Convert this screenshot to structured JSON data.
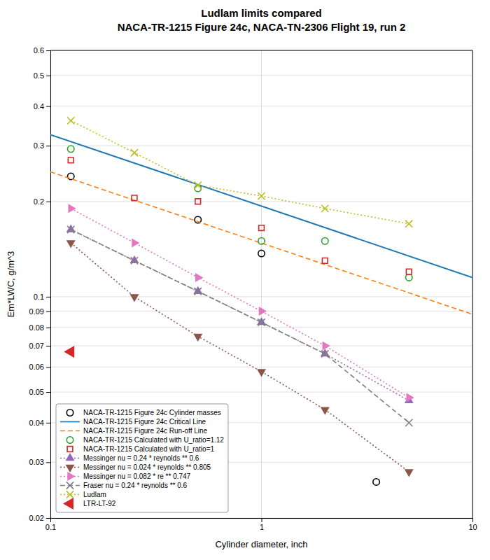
{
  "chart_data": {
    "type": "line",
    "title": "Ludlam limits compared\nNACA-TR-1215 Figure 24c, NACA-TN-2306 Flight 19, run 2",
    "xlabel": "Cylinder diameter, inch",
    "ylabel": "Em*LWC, g/m^3",
    "log": true,
    "xlim": [
      0.1,
      10
    ],
    "ylim": [
      0.02,
      0.6
    ],
    "xticks": [
      0.1,
      1,
      10
    ],
    "yticks": [
      0.02,
      0.03,
      0.04,
      0.05,
      0.06,
      0.07,
      0.08,
      0.09,
      0.1,
      0.2,
      0.3,
      0.4,
      0.5,
      0.6
    ],
    "grid": true,
    "legend": "lower left",
    "series": [
      {
        "name": "NACA-TR-1215 Figure 24c Cylinder masses",
        "type": "scatter",
        "color": "black",
        "marker": "circle-open",
        "x": [
          0.125,
          0.5,
          1.0,
          3.5
        ],
        "values": [
          0.24,
          0.175,
          0.137,
          0.026
        ]
      },
      {
        "name": "NACA-TR-1215 Figure 24c Critical Line",
        "type": "line",
        "color": "#1f77b4",
        "line_style": "solid",
        "x": [
          0.1,
          10
        ],
        "values": [
          0.325,
          0.115
        ]
      },
      {
        "name": "NACA-TR-1215 Figure 24c Run-off Line",
        "type": "line",
        "color": "#ff7f0e",
        "line_style": "dashed",
        "x": [
          0.1,
          10
        ],
        "values": [
          0.248,
          0.088
        ]
      },
      {
        "name": "NACA-TR-1215 Calculated with U_ratio=1.12",
        "type": "scatter",
        "color": "#2ca02c",
        "marker": "circle-open",
        "x": [
          0.125,
          0.5,
          1.0,
          2.0,
          5.0
        ],
        "values": [
          0.293,
          0.22,
          0.15,
          0.15,
          0.115
        ]
      },
      {
        "name": "NACA-TR-1215 Calculated with U_ratio=1",
        "type": "scatter",
        "color": "#d62728",
        "marker": "square-open",
        "x": [
          0.125,
          0.25,
          0.5,
          1.0,
          2.0,
          5.0
        ],
        "values": [
          0.27,
          0.205,
          0.2,
          0.165,
          0.13,
          0.12
        ]
      },
      {
        "name": "Messinger nu = 0.24 * reynolds ** 0.6",
        "type": "line",
        "color": "#9467bd",
        "line_style": "dotted",
        "marker": "triangle-up",
        "x": [
          0.125,
          0.25,
          0.5,
          1.0,
          2.0,
          5.0
        ],
        "values": [
          0.163,
          0.13,
          0.104,
          0.083,
          0.066,
          0.047
        ]
      },
      {
        "name": "Messinger nu = 0.024 * reynolds ** 0.805",
        "type": "line",
        "color": "#8c564b",
        "line_style": "dotted",
        "marker": "triangle-down",
        "x": [
          0.125,
          0.25,
          0.5,
          1.0,
          2.0,
          5.0
        ],
        "values": [
          0.148,
          0.1,
          0.075,
          0.058,
          0.044,
          0.028
        ]
      },
      {
        "name": "Messinger nu = 0.082 * re ** 0.747",
        "type": "line",
        "color": "#e377c2",
        "line_style": "dotted",
        "marker": "triangle-right",
        "x": [
          0.125,
          0.25,
          0.5,
          1.0,
          2.0,
          5.0
        ],
        "values": [
          0.19,
          0.148,
          0.115,
          0.09,
          0.07,
          0.048
        ]
      },
      {
        "name": "Fraser nu = 0.24 * reynolds ** 0.6",
        "type": "line",
        "color": "#7f7f7f",
        "line_style": "dashed",
        "marker": "x",
        "x": [
          0.125,
          0.25,
          0.5,
          1.0,
          2.0,
          5.0
        ],
        "values": [
          0.163,
          0.13,
          0.104,
          0.083,
          0.066,
          0.04
        ]
      },
      {
        "name": "Ludlam",
        "type": "line",
        "color": "#bcbd22",
        "line_style": "dotted",
        "marker": "x",
        "x": [
          0.125,
          0.25,
          0.5,
          1.0,
          2.0,
          5.0
        ],
        "values": [
          0.36,
          0.285,
          0.225,
          0.208,
          0.19,
          0.17
        ]
      },
      {
        "name": "LTR-LT-92",
        "type": "scatter",
        "color": "#d62728",
        "marker": "triangle-left",
        "x": [
          0.125
        ],
        "values": [
          0.067
        ]
      }
    ]
  }
}
